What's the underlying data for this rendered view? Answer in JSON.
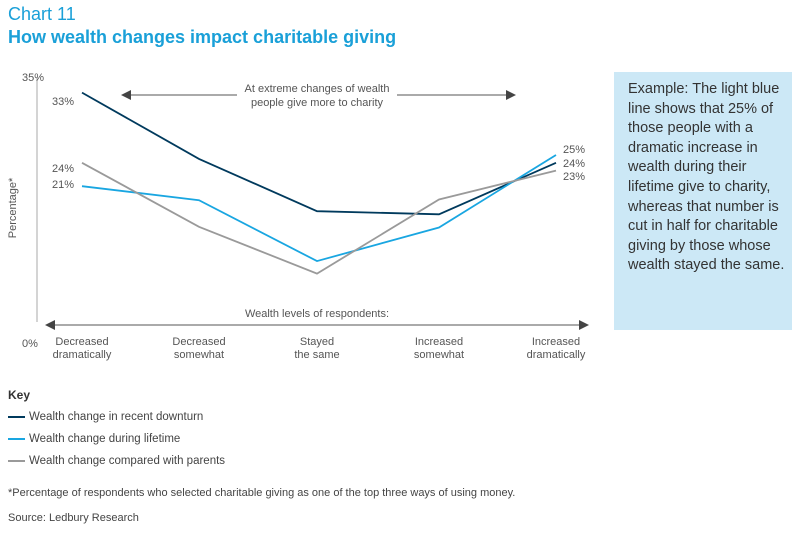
{
  "header": {
    "chart_number": "Chart 11",
    "title": "How wealth changes impact charitable giving"
  },
  "chart_data": {
    "type": "line",
    "title": "How wealth changes impact charitable giving",
    "ylabel": "Percentage*",
    "xlabel": "Wealth levels of respondents:",
    "ylim": [
      0,
      35
    ],
    "y_tick_labels": [
      "35%",
      "0%"
    ],
    "categories": [
      "Decreased dramatically",
      "Decreased somewhat",
      "Stayed the same",
      "Increased somewhat",
      "Increased dramatically"
    ],
    "category_labels": [
      [
        "Decreased",
        "dramatically"
      ],
      [
        "Decreased",
        "somewhat"
      ],
      [
        "Stayed",
        "the same"
      ],
      [
        "Increased",
        "somewhat"
      ],
      [
        "Increased",
        "dramatically"
      ]
    ],
    "top_annotation": [
      "At extreme changes of wealth",
      "people give more to charity"
    ],
    "series": [
      {
        "name": "Wealth change in recent downturn",
        "color": "#003a5d",
        "values": [
          33,
          24.5,
          17.8,
          17.4,
          24
        ]
      },
      {
        "name": "Wealth change during lifetime",
        "color": "#19a6e1",
        "values": [
          21,
          19.2,
          11.4,
          15.7,
          25
        ]
      },
      {
        "name": "Wealth change compared with parents",
        "color": "#9a9a9a",
        "values": [
          24,
          15.8,
          9.8,
          19.3,
          23
        ]
      }
    ],
    "data_labels_left": [
      "33%",
      "24%",
      "21%"
    ],
    "data_labels_right": [
      "25%",
      "24%",
      "23%"
    ]
  },
  "callout": {
    "text": "Example: The light blue line shows that 25% of those people with a dramatic increase in wealth during their lifetime give to charity, whereas that number is cut in half for charitable giving by those whose wealth stayed the same."
  },
  "key": {
    "title": "Key",
    "items": [
      {
        "label": "Wealth change in recent downturn",
        "color": "#003a5d"
      },
      {
        "label": "Wealth change during lifetime",
        "color": "#19a6e1"
      },
      {
        "label": "Wealth change compared with parents",
        "color": "#9a9a9a"
      }
    ]
  },
  "footnote": "*Percentage of respondents who selected charitable giving as one of the top three ways of using money.",
  "source": "Source: Ledbury Research"
}
